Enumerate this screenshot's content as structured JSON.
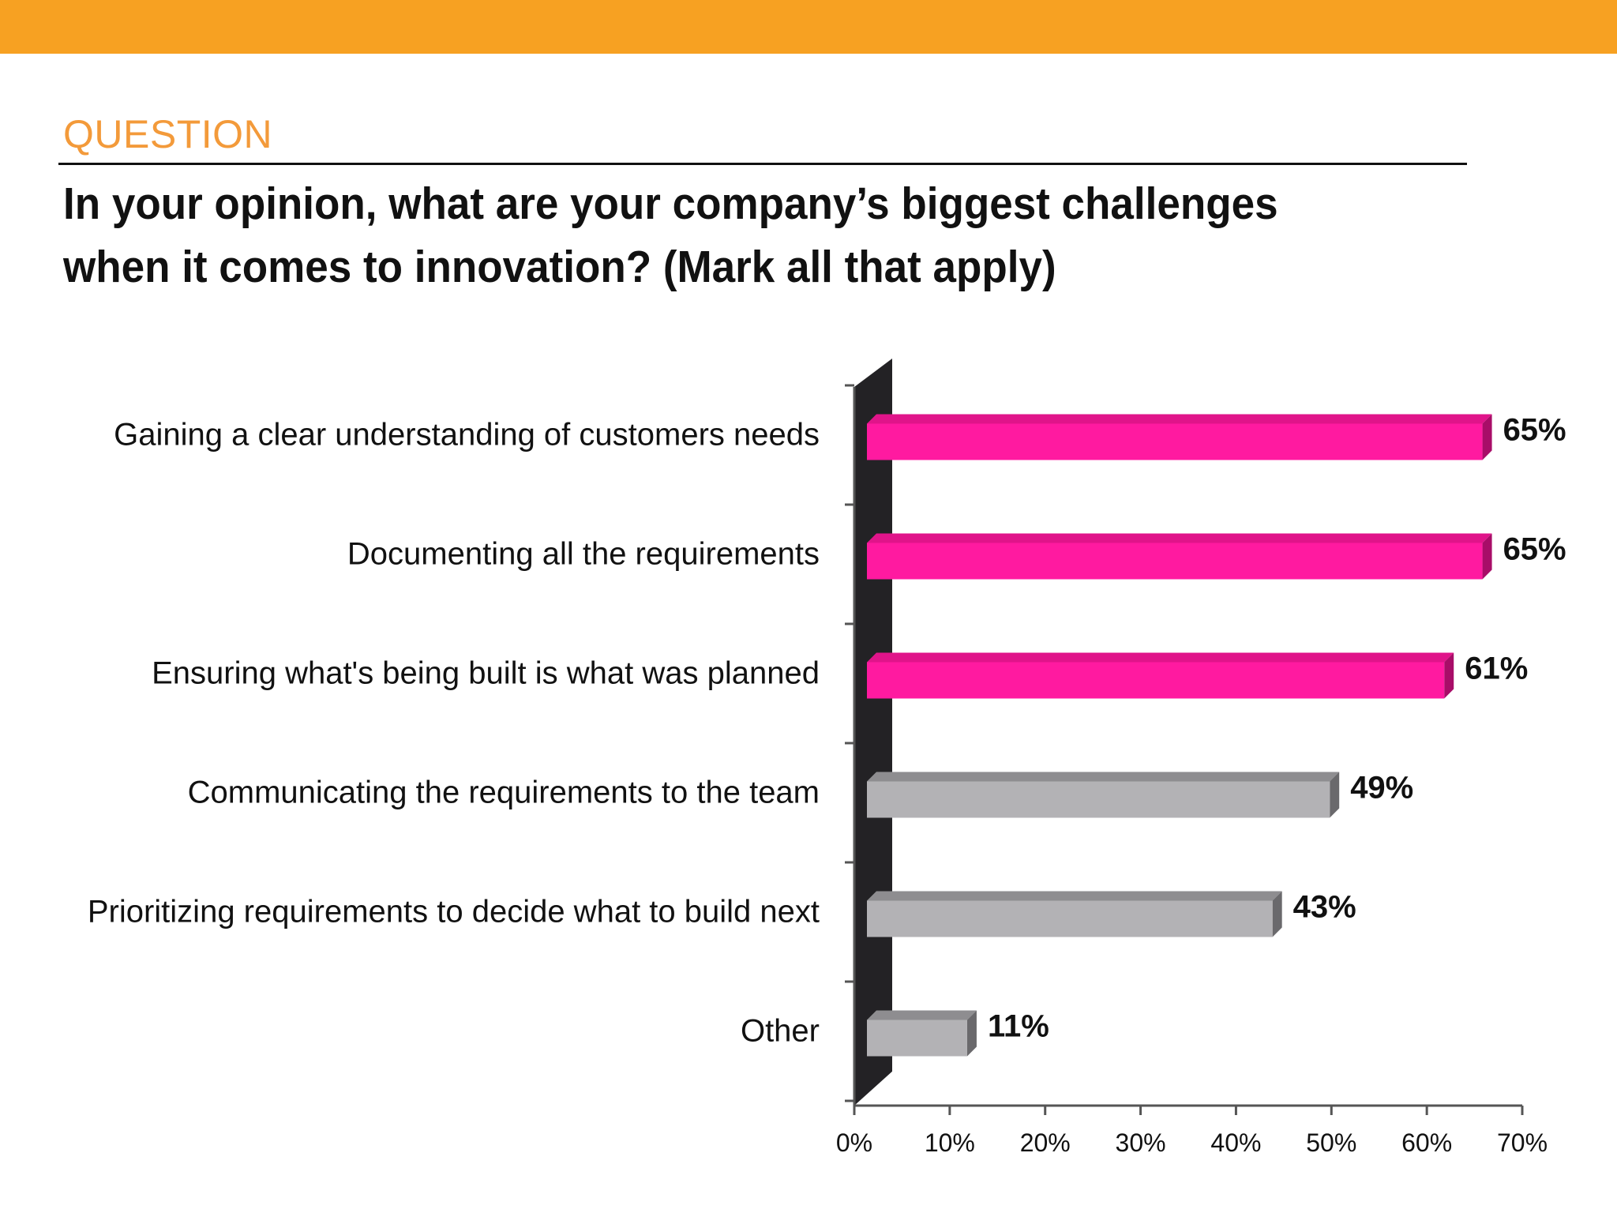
{
  "header": {
    "eyebrow": "QUESTION",
    "question": "In your opinion, what are your company’s biggest challenges when it comes to innovation? (Mark all that apply)"
  },
  "colors": {
    "band": "#F7A122",
    "eyebrow": "#F39A3A",
    "highlight": "#FF1AA0",
    "highlight_top": "#E0148A",
    "highlight_side": "#A80D68",
    "neutral": "#B3B2B5",
    "neutral_top": "#8E8D90",
    "neutral_side": "#6A696C",
    "wall": "#232225",
    "axis": "#555555"
  },
  "chart_data": {
    "type": "bar",
    "orientation": "horizontal",
    "categories": [
      "Gaining a clear understanding of customers needs",
      "Documenting all the requirements",
      "Ensuring what's being built is what was planned",
      "Communicating the requirements to the team",
      "Prioritizing requirements to decide what to build next",
      "Other"
    ],
    "values": [
      65,
      65,
      61,
      49,
      43,
      11
    ],
    "value_labels": [
      "65%",
      "65%",
      "61%",
      "49%",
      "43%",
      "11%"
    ],
    "highlighted": [
      true,
      true,
      true,
      false,
      false,
      false
    ],
    "xlim": [
      0,
      70
    ],
    "xticks": [
      0,
      10,
      20,
      30,
      40,
      50,
      60,
      70
    ],
    "xtick_labels": [
      "0%",
      "10%",
      "20%",
      "30%",
      "40%",
      "50%",
      "60%",
      "70%"
    ],
    "grid": false,
    "legend": "none",
    "style": "3d"
  }
}
